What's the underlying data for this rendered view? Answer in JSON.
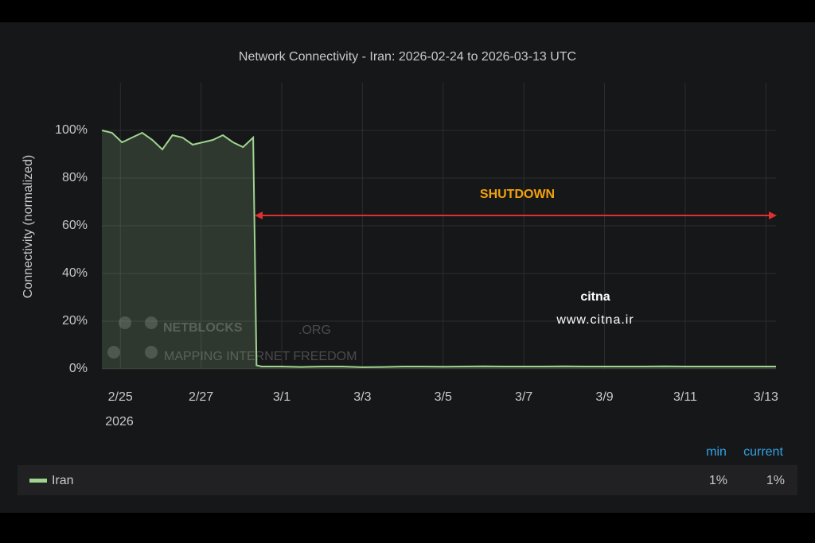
{
  "chart_data": {
    "type": "line",
    "title": "Network Connectivity - Iran: 2026-02-24 to 2026-03-13 UTC",
    "ylabel": "Connectivity (normalized)",
    "x": [
      "2026-02-24T13:00",
      "2026-02-24T19:00",
      "2026-02-25T01:00",
      "2026-02-25T07:00",
      "2026-02-25T13:00",
      "2026-02-25T19:00",
      "2026-02-26T01:00",
      "2026-02-26T07:00",
      "2026-02-26T13:00",
      "2026-02-26T19:00",
      "2026-02-27T01:00",
      "2026-02-27T07:00",
      "2026-02-27T13:00",
      "2026-02-27T19:00",
      "2026-02-28T01:00",
      "2026-02-28T07:00",
      "2026-02-28T09:00",
      "2026-02-28T12:00",
      "2026-03-01T00:00",
      "2026-03-01T12:00",
      "2026-03-02T00:00",
      "2026-03-02T12:00",
      "2026-03-03T00:00",
      "2026-03-03T12:00",
      "2026-03-04T00:00",
      "2026-03-04T12:00",
      "2026-03-05T00:00",
      "2026-03-05T12:00",
      "2026-03-06T00:00",
      "2026-03-06T12:00",
      "2026-03-07T00:00",
      "2026-03-07T12:00",
      "2026-03-08T00:00",
      "2026-03-08T12:00",
      "2026-03-09T00:00",
      "2026-03-09T12:00",
      "2026-03-10T00:00",
      "2026-03-10T12:00",
      "2026-03-11T00:00",
      "2026-03-11T12:00",
      "2026-03-12T00:00",
      "2026-03-12T12:00",
      "2026-03-13T00:00",
      "2026-03-13T06:00"
    ],
    "series": [
      {
        "name": "Iran",
        "color": "#9fd38f",
        "values": [
          100,
          99,
          95,
          97,
          99,
          96,
          92,
          98,
          97,
          94,
          95,
          96,
          98,
          95,
          93,
          97,
          1.5,
          1,
          1,
          0.8,
          1,
          1,
          0.7,
          0.8,
          1,
          1,
          0.9,
          1,
          1.1,
          1,
          1,
          1,
          1.1,
          1,
          1,
          1,
          1,
          1.1,
          1,
          1,
          1,
          1,
          1,
          1
        ]
      }
    ],
    "xlim": [
      "2026-02-24T13:00",
      "2026-03-13T06:00"
    ],
    "xticks": [
      {
        "value": "2026-02-25",
        "label": "2/25"
      },
      {
        "value": "2026-02-27",
        "label": "2/27"
      },
      {
        "value": "2026-03-01",
        "label": "3/1"
      },
      {
        "value": "2026-03-03",
        "label": "3/3"
      },
      {
        "value": "2026-03-05",
        "label": "3/5"
      },
      {
        "value": "2026-03-07",
        "label": "3/7"
      },
      {
        "value": "2026-03-09",
        "label": "3/9"
      },
      {
        "value": "2026-03-11",
        "label": "3/11"
      },
      {
        "value": "2026-03-13",
        "label": "3/13"
      }
    ],
    "xtick_year": "2026",
    "ylim": [
      0,
      120
    ],
    "yticks": [
      {
        "value": 0,
        "label": "0%"
      },
      {
        "value": 20,
        "label": "20%"
      },
      {
        "value": 40,
        "label": "40%"
      },
      {
        "value": 60,
        "label": "60%"
      },
      {
        "value": 80,
        "label": "80%"
      },
      {
        "value": 100,
        "label": "100%"
      }
    ],
    "grid": true,
    "annotation": "SHUTDOWN",
    "legend_columns": [
      "min",
      "current"
    ],
    "legend_stats": [
      "1%",
      "1%"
    ],
    "watermarks": {
      "netblocks": "NETBLOCKS",
      "netblocks_suffix": ".ORG",
      "netblocks_tagline": "MAPPING INTERNET FREEDOM",
      "citna": "citna",
      "citna_url": "www.citna.ir"
    }
  }
}
